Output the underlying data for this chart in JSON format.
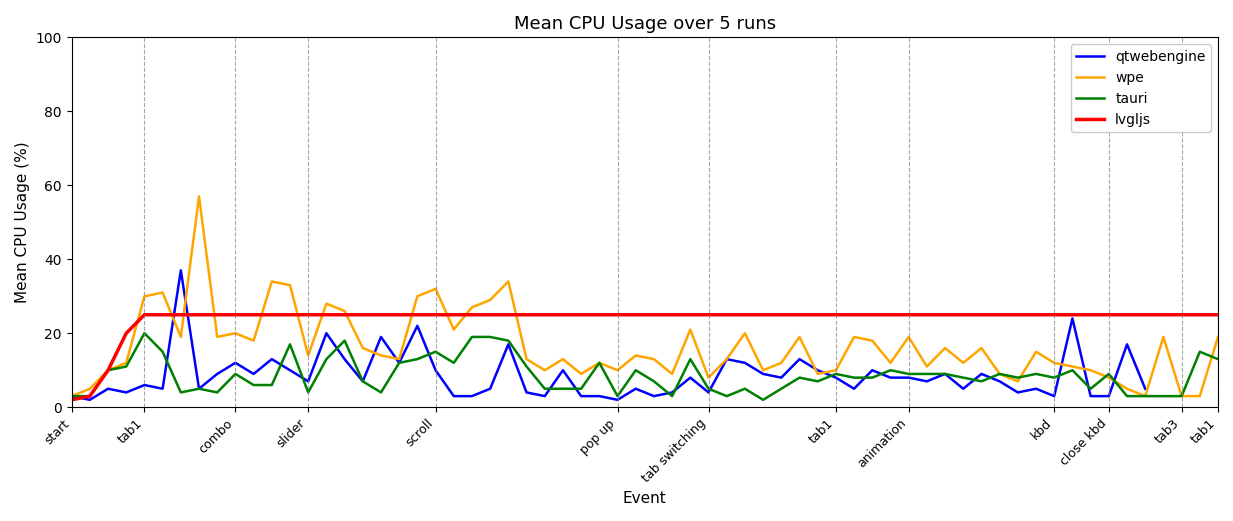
{
  "title": "Mean CPU Usage over 5 runs",
  "xlabel": "Event",
  "ylabel": "Mean CPU Usage (%)",
  "ylim": [
    0,
    100
  ],
  "yticks": [
    0,
    20,
    40,
    60,
    80,
    100
  ],
  "figsize": [
    12.33,
    5.21
  ],
  "dpi": 100,
  "series": [
    {
      "name": "qtwebengine",
      "color": "blue",
      "linewidth": 1.8,
      "values": [
        3,
        2,
        5,
        4,
        6,
        5,
        37,
        5,
        9,
        12,
        9,
        13,
        10,
        7,
        20,
        13,
        7,
        19,
        12,
        22,
        10,
        3,
        3,
        5,
        17,
        4,
        3,
        10,
        3,
        3,
        2,
        5,
        3,
        4,
        8,
        4,
        13,
        12,
        9,
        8,
        13,
        10,
        8,
        5,
        10,
        8,
        8,
        7,
        9,
        5,
        9,
        7,
        4,
        5,
        3,
        24,
        3,
        3,
        17,
        5
      ]
    },
    {
      "name": "wpe",
      "color": "orange",
      "linewidth": 1.8,
      "values": [
        3,
        5,
        10,
        12,
        30,
        31,
        19,
        57,
        19,
        20,
        18,
        34,
        33,
        14,
        28,
        26,
        16,
        14,
        13,
        30,
        32,
        21,
        27,
        29,
        34,
        13,
        10,
        13,
        9,
        12,
        10,
        14,
        13,
        9,
        21,
        8,
        13,
        20,
        10,
        12,
        19,
        9,
        10,
        19,
        18,
        12,
        19,
        11,
        16,
        12,
        16,
        9,
        7,
        15,
        12,
        11,
        10,
        8,
        5,
        3,
        19,
        3,
        3,
        19
      ]
    },
    {
      "name": "tauri",
      "color": "green",
      "linewidth": 1.8,
      "values": [
        3,
        3,
        10,
        11,
        20,
        15,
        4,
        5,
        4,
        9,
        6,
        6,
        17,
        4,
        13,
        18,
        7,
        4,
        12,
        13,
        15,
        12,
        19,
        19,
        18,
        11,
        5,
        5,
        5,
        12,
        3,
        10,
        7,
        3,
        13,
        5,
        3,
        5,
        2,
        5,
        8,
        7,
        9,
        8,
        8,
        10,
        9,
        9,
        9,
        8,
        7,
        9,
        8,
        9,
        8,
        10,
        5,
        9,
        3,
        3,
        3,
        3,
        15,
        13
      ]
    },
    {
      "name": "lvgljs",
      "color": "red",
      "linewidth": 2.5,
      "values": [
        2,
        3,
        10,
        20,
        25,
        25,
        25,
        25,
        25,
        25,
        25,
        25,
        25,
        25,
        25,
        25,
        25,
        25,
        25,
        25,
        25,
        25,
        25,
        25,
        25,
        25,
        25,
        25,
        25,
        25,
        25,
        25,
        25,
        25,
        25,
        25,
        25,
        25,
        25,
        25,
        25,
        25,
        25,
        25,
        25,
        25,
        25,
        25,
        25,
        25,
        25,
        25,
        25,
        25,
        25,
        25,
        25,
        25,
        25,
        25,
        25,
        25,
        25,
        25
      ]
    }
  ],
  "x_tick_labels": [
    "start",
    "tab1",
    "combo",
    "slider",
    "scroll",
    "pop up",
    "tab switching",
    "tab1",
    "animation",
    "kbd",
    "close kbd",
    "tab3",
    "tab1"
  ],
  "x_tick_positions": [
    0,
    4,
    9,
    13,
    20,
    30,
    35,
    42,
    46,
    54,
    57,
    61,
    63
  ],
  "vline_positions": [
    0,
    4,
    9,
    13,
    20,
    30,
    35,
    42,
    46,
    54,
    57,
    61,
    63
  ]
}
